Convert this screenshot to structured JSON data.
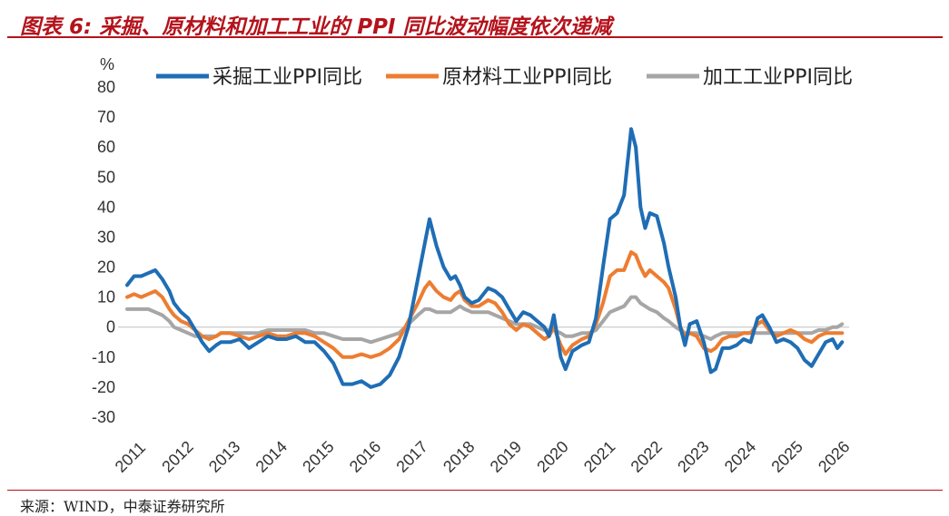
{
  "title": "图表 6:  采掘、原材料和加工工业的 PPI 同比波动幅度依次递减",
  "source": "来源：WIND，中泰证券研究所",
  "chart_data": {
    "type": "line",
    "title": "图表 6:  采掘、原材料和加工工业的 PPI 同比波动幅度依次递减",
    "ylabel": "%",
    "ylim": [
      -30,
      80
    ],
    "yticks": [
      80,
      70,
      60,
      50,
      40,
      30,
      20,
      10,
      0,
      -10,
      -20,
      -30
    ],
    "xlim": [
      2011,
      2026.4
    ],
    "xticks": [
      "2011",
      "2012",
      "2013",
      "2014",
      "2015",
      "2016",
      "2017",
      "2018",
      "2019",
      "2020",
      "2021",
      "2022",
      "2023",
      "2024",
      "2025",
      "2026"
    ],
    "grid": false,
    "legend_position": "top",
    "series": [
      {
        "name": "采掘工业PPI同比",
        "color": "#1f6db5",
        "points": [
          [
            2011.0,
            14
          ],
          [
            2011.15,
            17
          ],
          [
            2011.3,
            17
          ],
          [
            2011.45,
            18
          ],
          [
            2011.6,
            19
          ],
          [
            2011.75,
            16
          ],
          [
            2011.9,
            12
          ],
          [
            2012.0,
            8
          ],
          [
            2012.15,
            5
          ],
          [
            2012.3,
            3
          ],
          [
            2012.45,
            -1
          ],
          [
            2012.6,
            -5
          ],
          [
            2012.75,
            -8
          ],
          [
            2012.9,
            -6
          ],
          [
            2013.0,
            -5
          ],
          [
            2013.2,
            -5
          ],
          [
            2013.4,
            -4
          ],
          [
            2013.6,
            -7
          ],
          [
            2013.8,
            -5
          ],
          [
            2014.0,
            -3
          ],
          [
            2014.2,
            -4
          ],
          [
            2014.4,
            -4
          ],
          [
            2014.6,
            -3
          ],
          [
            2014.8,
            -5
          ],
          [
            2015.0,
            -5
          ],
          [
            2015.2,
            -8
          ],
          [
            2015.4,
            -12
          ],
          [
            2015.6,
            -19
          ],
          [
            2015.8,
            -19
          ],
          [
            2016.0,
            -18
          ],
          [
            2016.2,
            -20
          ],
          [
            2016.4,
            -19
          ],
          [
            2016.6,
            -16
          ],
          [
            2016.8,
            -10
          ],
          [
            2017.0,
            0
          ],
          [
            2017.2,
            16
          ],
          [
            2017.35,
            28
          ],
          [
            2017.45,
            36
          ],
          [
            2017.6,
            27
          ],
          [
            2017.75,
            20
          ],
          [
            2017.9,
            16
          ],
          [
            2018.0,
            17
          ],
          [
            2018.1,
            14
          ],
          [
            2018.2,
            10
          ],
          [
            2018.35,
            8
          ],
          [
            2018.5,
            9
          ],
          [
            2018.7,
            13
          ],
          [
            2018.85,
            12
          ],
          [
            2019.0,
            10
          ],
          [
            2019.15,
            6
          ],
          [
            2019.3,
            2
          ],
          [
            2019.45,
            5
          ],
          [
            2019.6,
            4
          ],
          [
            2019.75,
            2
          ],
          [
            2019.9,
            0
          ],
          [
            2020.0,
            -3
          ],
          [
            2020.1,
            4
          ],
          [
            2020.25,
            -10
          ],
          [
            2020.35,
            -14
          ],
          [
            2020.5,
            -8
          ],
          [
            2020.7,
            -6
          ],
          [
            2020.85,
            -5
          ],
          [
            2021.0,
            3
          ],
          [
            2021.15,
            20
          ],
          [
            2021.3,
            36
          ],
          [
            2021.45,
            38
          ],
          [
            2021.6,
            44
          ],
          [
            2021.75,
            66
          ],
          [
            2021.85,
            60
          ],
          [
            2021.95,
            40
          ],
          [
            2022.05,
            33
          ],
          [
            2022.15,
            38
          ],
          [
            2022.3,
            37
          ],
          [
            2022.45,
            28
          ],
          [
            2022.55,
            20
          ],
          [
            2022.7,
            10
          ],
          [
            2022.8,
            0
          ],
          [
            2022.9,
            -6
          ],
          [
            2023.0,
            1
          ],
          [
            2023.15,
            2
          ],
          [
            2023.3,
            -5
          ],
          [
            2023.45,
            -15
          ],
          [
            2023.55,
            -14
          ],
          [
            2023.7,
            -7
          ],
          [
            2023.85,
            -7
          ],
          [
            2024.0,
            -6
          ],
          [
            2024.15,
            -4
          ],
          [
            2024.3,
            -5
          ],
          [
            2024.45,
            3
          ],
          [
            2024.55,
            4
          ],
          [
            2024.7,
            0
          ],
          [
            2024.85,
            -5
          ],
          [
            2025.0,
            -4
          ],
          [
            2025.15,
            -5
          ],
          [
            2025.3,
            -7
          ],
          [
            2025.45,
            -11
          ],
          [
            2025.6,
            -13
          ],
          [
            2025.75,
            -9
          ],
          [
            2025.9,
            -5
          ],
          [
            2026.05,
            -4
          ],
          [
            2026.15,
            -7
          ],
          [
            2026.25,
            -5
          ]
        ]
      },
      {
        "name": "原材料工业PPI同比",
        "color": "#ed7d31",
        "points": [
          [
            2011.0,
            10
          ],
          [
            2011.15,
            11
          ],
          [
            2011.3,
            10
          ],
          [
            2011.45,
            11
          ],
          [
            2011.6,
            12
          ],
          [
            2011.75,
            10
          ],
          [
            2011.9,
            6
          ],
          [
            2012.0,
            4
          ],
          [
            2012.15,
            2
          ],
          [
            2012.3,
            1
          ],
          [
            2012.45,
            -1
          ],
          [
            2012.6,
            -3
          ],
          [
            2012.75,
            -4
          ],
          [
            2012.9,
            -3
          ],
          [
            2013.0,
            -2
          ],
          [
            2013.2,
            -2
          ],
          [
            2013.4,
            -3
          ],
          [
            2013.6,
            -4
          ],
          [
            2013.8,
            -3
          ],
          [
            2014.0,
            -2
          ],
          [
            2014.2,
            -3
          ],
          [
            2014.4,
            -3
          ],
          [
            2014.6,
            -2
          ],
          [
            2014.8,
            -2
          ],
          [
            2015.0,
            -3
          ],
          [
            2015.2,
            -5
          ],
          [
            2015.4,
            -7
          ],
          [
            2015.6,
            -10
          ],
          [
            2015.8,
            -10
          ],
          [
            2016.0,
            -9
          ],
          [
            2016.2,
            -10
          ],
          [
            2016.4,
            -9
          ],
          [
            2016.6,
            -7
          ],
          [
            2016.8,
            -4
          ],
          [
            2017.0,
            2
          ],
          [
            2017.2,
            8
          ],
          [
            2017.35,
            13
          ],
          [
            2017.45,
            15
          ],
          [
            2017.6,
            12
          ],
          [
            2017.75,
            10
          ],
          [
            2017.9,
            9
          ],
          [
            2018.0,
            11
          ],
          [
            2018.1,
            12
          ],
          [
            2018.2,
            9
          ],
          [
            2018.35,
            7
          ],
          [
            2018.5,
            7
          ],
          [
            2018.7,
            9
          ],
          [
            2018.85,
            8
          ],
          [
            2019.0,
            5
          ],
          [
            2019.15,
            1
          ],
          [
            2019.3,
            -1
          ],
          [
            2019.45,
            1
          ],
          [
            2019.6,
            0
          ],
          [
            2019.75,
            -2
          ],
          [
            2019.9,
            -4
          ],
          [
            2020.0,
            -3
          ],
          [
            2020.1,
            0
          ],
          [
            2020.25,
            -6
          ],
          [
            2020.35,
            -9
          ],
          [
            2020.5,
            -6
          ],
          [
            2020.7,
            -4
          ],
          [
            2020.85,
            -3
          ],
          [
            2021.0,
            1
          ],
          [
            2021.15,
            8
          ],
          [
            2021.3,
            17
          ],
          [
            2021.45,
            19
          ],
          [
            2021.6,
            19
          ],
          [
            2021.75,
            25
          ],
          [
            2021.85,
            24
          ],
          [
            2021.95,
            20
          ],
          [
            2022.05,
            17
          ],
          [
            2022.15,
            19
          ],
          [
            2022.3,
            17
          ],
          [
            2022.45,
            15
          ],
          [
            2022.55,
            13
          ],
          [
            2022.7,
            6
          ],
          [
            2022.8,
            0
          ],
          [
            2022.9,
            -3
          ],
          [
            2023.0,
            -2
          ],
          [
            2023.15,
            -3
          ],
          [
            2023.3,
            -7
          ],
          [
            2023.45,
            -8
          ],
          [
            2023.55,
            -7
          ],
          [
            2023.7,
            -4
          ],
          [
            2023.85,
            -3
          ],
          [
            2024.0,
            -3
          ],
          [
            2024.15,
            -2
          ],
          [
            2024.3,
            -2
          ],
          [
            2024.45,
            1
          ],
          [
            2024.55,
            2
          ],
          [
            2024.7,
            -1
          ],
          [
            2024.85,
            -3
          ],
          [
            2025.0,
            -2
          ],
          [
            2025.15,
            -1
          ],
          [
            2025.3,
            -2
          ],
          [
            2025.45,
            -4
          ],
          [
            2025.6,
            -5
          ],
          [
            2025.75,
            -3
          ],
          [
            2025.9,
            -2
          ],
          [
            2026.05,
            -2
          ],
          [
            2026.15,
            -2
          ],
          [
            2026.25,
            -2
          ]
        ]
      },
      {
        "name": "加工工业PPI同比",
        "color": "#a6a6a6",
        "points": [
          [
            2011.0,
            6
          ],
          [
            2011.15,
            6
          ],
          [
            2011.3,
            6
          ],
          [
            2011.45,
            6
          ],
          [
            2011.6,
            5
          ],
          [
            2011.75,
            4
          ],
          [
            2011.9,
            2
          ],
          [
            2012.0,
            0
          ],
          [
            2012.15,
            -1
          ],
          [
            2012.3,
            -2
          ],
          [
            2012.45,
            -3
          ],
          [
            2012.6,
            -3
          ],
          [
            2012.75,
            -3
          ],
          [
            2012.9,
            -3
          ],
          [
            2013.0,
            -2
          ],
          [
            2013.2,
            -2
          ],
          [
            2013.4,
            -2
          ],
          [
            2013.6,
            -2
          ],
          [
            2013.8,
            -2
          ],
          [
            2014.0,
            -1
          ],
          [
            2014.2,
            -1
          ],
          [
            2014.4,
            -1
          ],
          [
            2014.6,
            -1
          ],
          [
            2014.8,
            -1
          ],
          [
            2015.0,
            -2
          ],
          [
            2015.2,
            -2
          ],
          [
            2015.4,
            -3
          ],
          [
            2015.6,
            -4
          ],
          [
            2015.8,
            -4
          ],
          [
            2016.0,
            -4
          ],
          [
            2016.2,
            -5
          ],
          [
            2016.4,
            -4
          ],
          [
            2016.6,
            -3
          ],
          [
            2016.8,
            -2
          ],
          [
            2017.0,
            1
          ],
          [
            2017.2,
            4
          ],
          [
            2017.35,
            6
          ],
          [
            2017.45,
            6
          ],
          [
            2017.6,
            5
          ],
          [
            2017.75,
            5
          ],
          [
            2017.9,
            5
          ],
          [
            2018.0,
            6
          ],
          [
            2018.1,
            7
          ],
          [
            2018.2,
            6
          ],
          [
            2018.35,
            5
          ],
          [
            2018.5,
            5
          ],
          [
            2018.7,
            5
          ],
          [
            2018.85,
            4
          ],
          [
            2019.0,
            3
          ],
          [
            2019.15,
            2
          ],
          [
            2019.3,
            1
          ],
          [
            2019.45,
            1
          ],
          [
            2019.6,
            1
          ],
          [
            2019.75,
            0
          ],
          [
            2019.9,
            -1
          ],
          [
            2020.0,
            -1
          ],
          [
            2020.1,
            -1
          ],
          [
            2020.25,
            -2
          ],
          [
            2020.35,
            -3
          ],
          [
            2020.5,
            -3
          ],
          [
            2020.7,
            -2
          ],
          [
            2020.85,
            -2
          ],
          [
            2021.0,
            -1
          ],
          [
            2021.15,
            2
          ],
          [
            2021.3,
            5
          ],
          [
            2021.45,
            6
          ],
          [
            2021.6,
            7
          ],
          [
            2021.75,
            10
          ],
          [
            2021.85,
            10
          ],
          [
            2021.95,
            8
          ],
          [
            2022.05,
            7
          ],
          [
            2022.15,
            6
          ],
          [
            2022.3,
            5
          ],
          [
            2022.45,
            3
          ],
          [
            2022.55,
            2
          ],
          [
            2022.7,
            0
          ],
          [
            2022.8,
            -1
          ],
          [
            2022.9,
            -2
          ],
          [
            2023.0,
            -2
          ],
          [
            2023.15,
            -2
          ],
          [
            2023.3,
            -3
          ],
          [
            2023.45,
            -4
          ],
          [
            2023.55,
            -3
          ],
          [
            2023.7,
            -2
          ],
          [
            2023.85,
            -2
          ],
          [
            2024.0,
            -2
          ],
          [
            2024.15,
            -2
          ],
          [
            2024.3,
            -2
          ],
          [
            2024.45,
            -2
          ],
          [
            2024.55,
            -2
          ],
          [
            2024.7,
            -2
          ],
          [
            2024.85,
            -2
          ],
          [
            2025.0,
            -2
          ],
          [
            2025.15,
            -2
          ],
          [
            2025.3,
            -2
          ],
          [
            2025.45,
            -2
          ],
          [
            2025.6,
            -2
          ],
          [
            2025.75,
            -1
          ],
          [
            2025.9,
            -1
          ],
          [
            2026.05,
            0
          ],
          [
            2026.15,
            0
          ],
          [
            2026.25,
            1
          ]
        ]
      }
    ]
  }
}
